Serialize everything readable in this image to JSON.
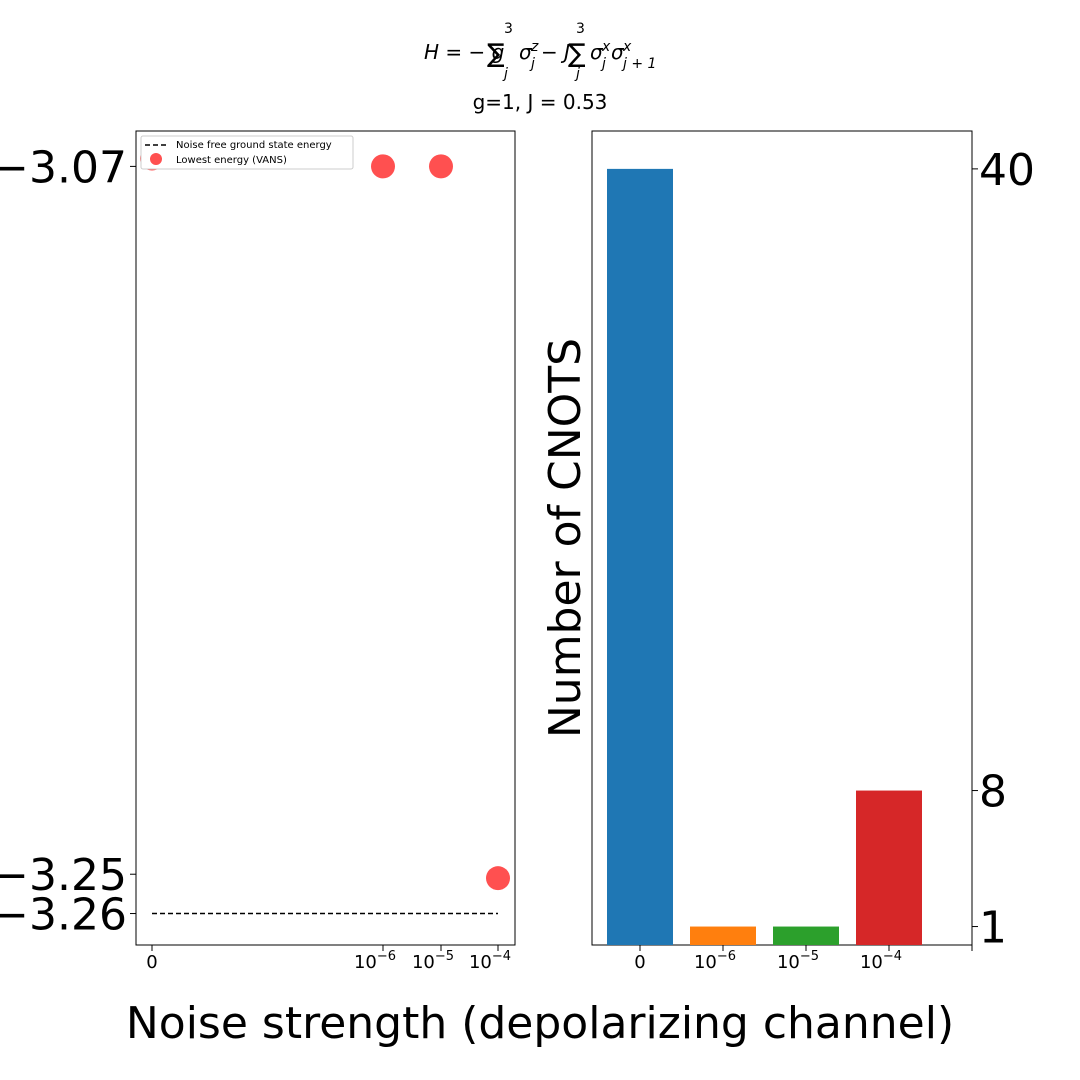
{
  "header": {
    "formula_text": "H = − g∑σz − J∑σxσx",
    "formula_parts": {
      "lhs": "H = − g",
      "sum1_sup": "3",
      "sum1_sub": "j",
      "sigma1_sup": "z",
      "sigma1_sub": "j",
      "minus_j": "− J",
      "sum2_sup": "3",
      "sum2_sub": "j",
      "sigma2_sup": "x",
      "sigma2_sub": "j",
      "sigma3_sup": "x",
      "sigma3_sub": "j + 1"
    },
    "subtitle": "g=1, J = 0.53"
  },
  "xlabel": "Noise strength (depolarizing channel)",
  "chart_data": [
    {
      "type": "scatter",
      "x_tick_labels": [
        "0",
        "10",
        "10",
        "10"
      ],
      "x_tick_exponents": [
        "",
        "−6",
        "−5",
        "−4"
      ],
      "y_tick_labels": [
        "−3.07",
        "−3.25",
        "−3.26"
      ],
      "series": [
        {
          "name": "Noise free ground state energy",
          "style": "dashed",
          "color": "#000000",
          "values": [
            -3.26,
            -3.26
          ]
        },
        {
          "name": "Lowest energy (VANS)",
          "style": "marker",
          "color": "#ff2a2a",
          "x": [
            "0",
            "10^-6",
            "10^-5",
            "10^-4"
          ],
          "values": [
            -3.068,
            -3.07,
            -3.07,
            -3.251
          ]
        }
      ],
      "legend": "top-left",
      "ylim": [
        -3.268,
        -3.061
      ],
      "grid": false
    },
    {
      "type": "bar",
      "categories": [
        "0",
        "10^-6",
        "10^-5",
        "10^-4"
      ],
      "x_tick_labels": [
        "0",
        "10",
        "10",
        "10"
      ],
      "x_tick_exponents": [
        "",
        "−6",
        "−5",
        "−4"
      ],
      "values": [
        40,
        1,
        1,
        8
      ],
      "colors": [
        "#1f77b4",
        "#ff7f0e",
        "#2ca02c",
        "#d62728"
      ],
      "ylabel": "Number of CNOTS",
      "y_tick_labels": [
        "40",
        "8",
        "1"
      ],
      "y_ticks": [
        40,
        8,
        1
      ],
      "ylim": [
        0.05,
        41.95
      ],
      "grid": false
    }
  ]
}
